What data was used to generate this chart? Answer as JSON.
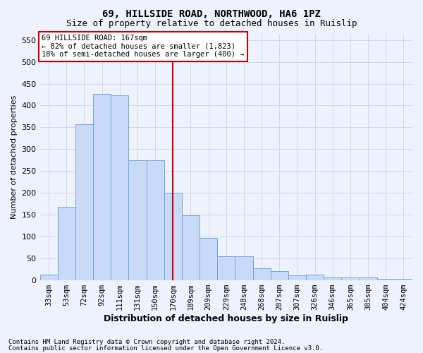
{
  "title1": "69, HILLSIDE ROAD, NORTHWOOD, HA6 1PZ",
  "title2": "Size of property relative to detached houses in Ruislip",
  "xlabel": "Distribution of detached houses by size in Ruislip",
  "ylabel": "Number of detached properties",
  "categories": [
    "33sqm",
    "53sqm",
    "72sqm",
    "92sqm",
    "111sqm",
    "131sqm",
    "150sqm",
    "170sqm",
    "189sqm",
    "209sqm",
    "229sqm",
    "248sqm",
    "268sqm",
    "287sqm",
    "307sqm",
    "326sqm",
    "346sqm",
    "365sqm",
    "385sqm",
    "404sqm",
    "424sqm"
  ],
  "values": [
    12,
    168,
    357,
    427,
    424,
    275,
    275,
    200,
    148,
    96,
    55,
    55,
    27,
    20,
    11,
    12,
    6,
    5,
    5,
    2,
    3
  ],
  "bar_color": "#c9daf8",
  "bar_edge_color": "#6fa8dc",
  "grid_color": "#c8d4f0",
  "vline_x": 7,
  "vline_color": "#cc0000",
  "annotation_text": "69 HILLSIDE ROAD: 167sqm\n← 82% of detached houses are smaller (1,823)\n18% of semi-detached houses are larger (400) →",
  "annotation_box_color": "#ffffff",
  "annotation_box_edge": "#cc0000",
  "ylim": [
    0,
    565
  ],
  "yticks": [
    0,
    50,
    100,
    150,
    200,
    250,
    300,
    350,
    400,
    450,
    500,
    550
  ],
  "footnote1": "Contains HM Land Registry data © Crown copyright and database right 2024.",
  "footnote2": "Contains public sector information licensed under the Open Government Licence v3.0.",
  "background_color": "#eef2fc",
  "title1_fontsize": 10,
  "title2_fontsize": 9,
  "xlabel_fontsize": 9,
  "ylabel_fontsize": 8,
  "tick_fontsize": 7.5,
  "annot_fontsize": 7.5,
  "footnote_fontsize": 6.5
}
